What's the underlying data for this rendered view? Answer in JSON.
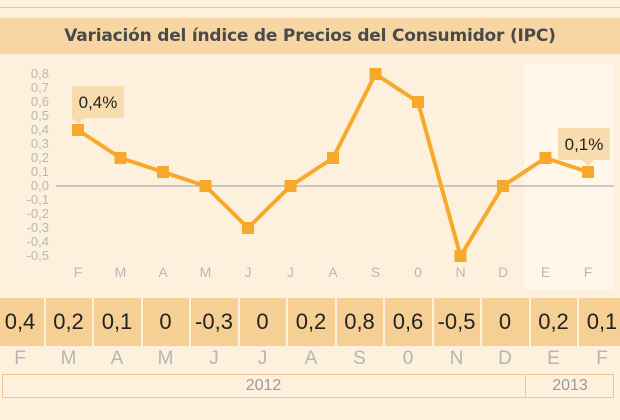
{
  "title": "Variación del índice de Precios del Consumidor (IPC)",
  "chart_data": {
    "type": "line",
    "title": "Variación del índice de Precios del Consumidor (IPC)",
    "categories": [
      "F",
      "M",
      "A",
      "M",
      "J",
      "J",
      "A",
      "S",
      "0",
      "N",
      "D",
      "E",
      "F"
    ],
    "values": [
      0.4,
      0.2,
      0.1,
      0,
      -0.3,
      0,
      0.2,
      0.8,
      0.6,
      -0.5,
      0,
      0.2,
      0.1
    ],
    "ylim": [
      -0.5,
      0.8
    ],
    "yticks": [
      "0,8",
      "0,7",
      "0,6",
      "0,5",
      "0,4",
      "0,3",
      "0,2",
      "0,1",
      "0,0",
      "-0,1",
      "-0,2",
      "-0,3",
      "-0,4",
      "-0,5"
    ],
    "grid": false,
    "callouts": [
      {
        "index": 0,
        "label": "0,4%"
      },
      {
        "index": 12,
        "label": "0,1%"
      }
    ],
    "highlight_start_index": 11,
    "line_color": "#f6a92a",
    "marker_color": "#f6a92a",
    "callout_color": "#f9dcae",
    "zero_line_color": "#9a9a9a"
  },
  "values_row": {
    "labels": [
      "0,4",
      "0,2",
      "0,1",
      "0",
      "-0,3",
      "0",
      "0,2",
      "0,8",
      "0,6",
      "-0,5",
      "0",
      "0,2",
      "0,1"
    ],
    "months": [
      "F",
      "M",
      "A",
      "M",
      "J",
      "J",
      "A",
      "S",
      "0",
      "N",
      "D",
      "E",
      "F"
    ],
    "background": "#f6cf94"
  },
  "years": [
    "2012",
    "2013"
  ]
}
